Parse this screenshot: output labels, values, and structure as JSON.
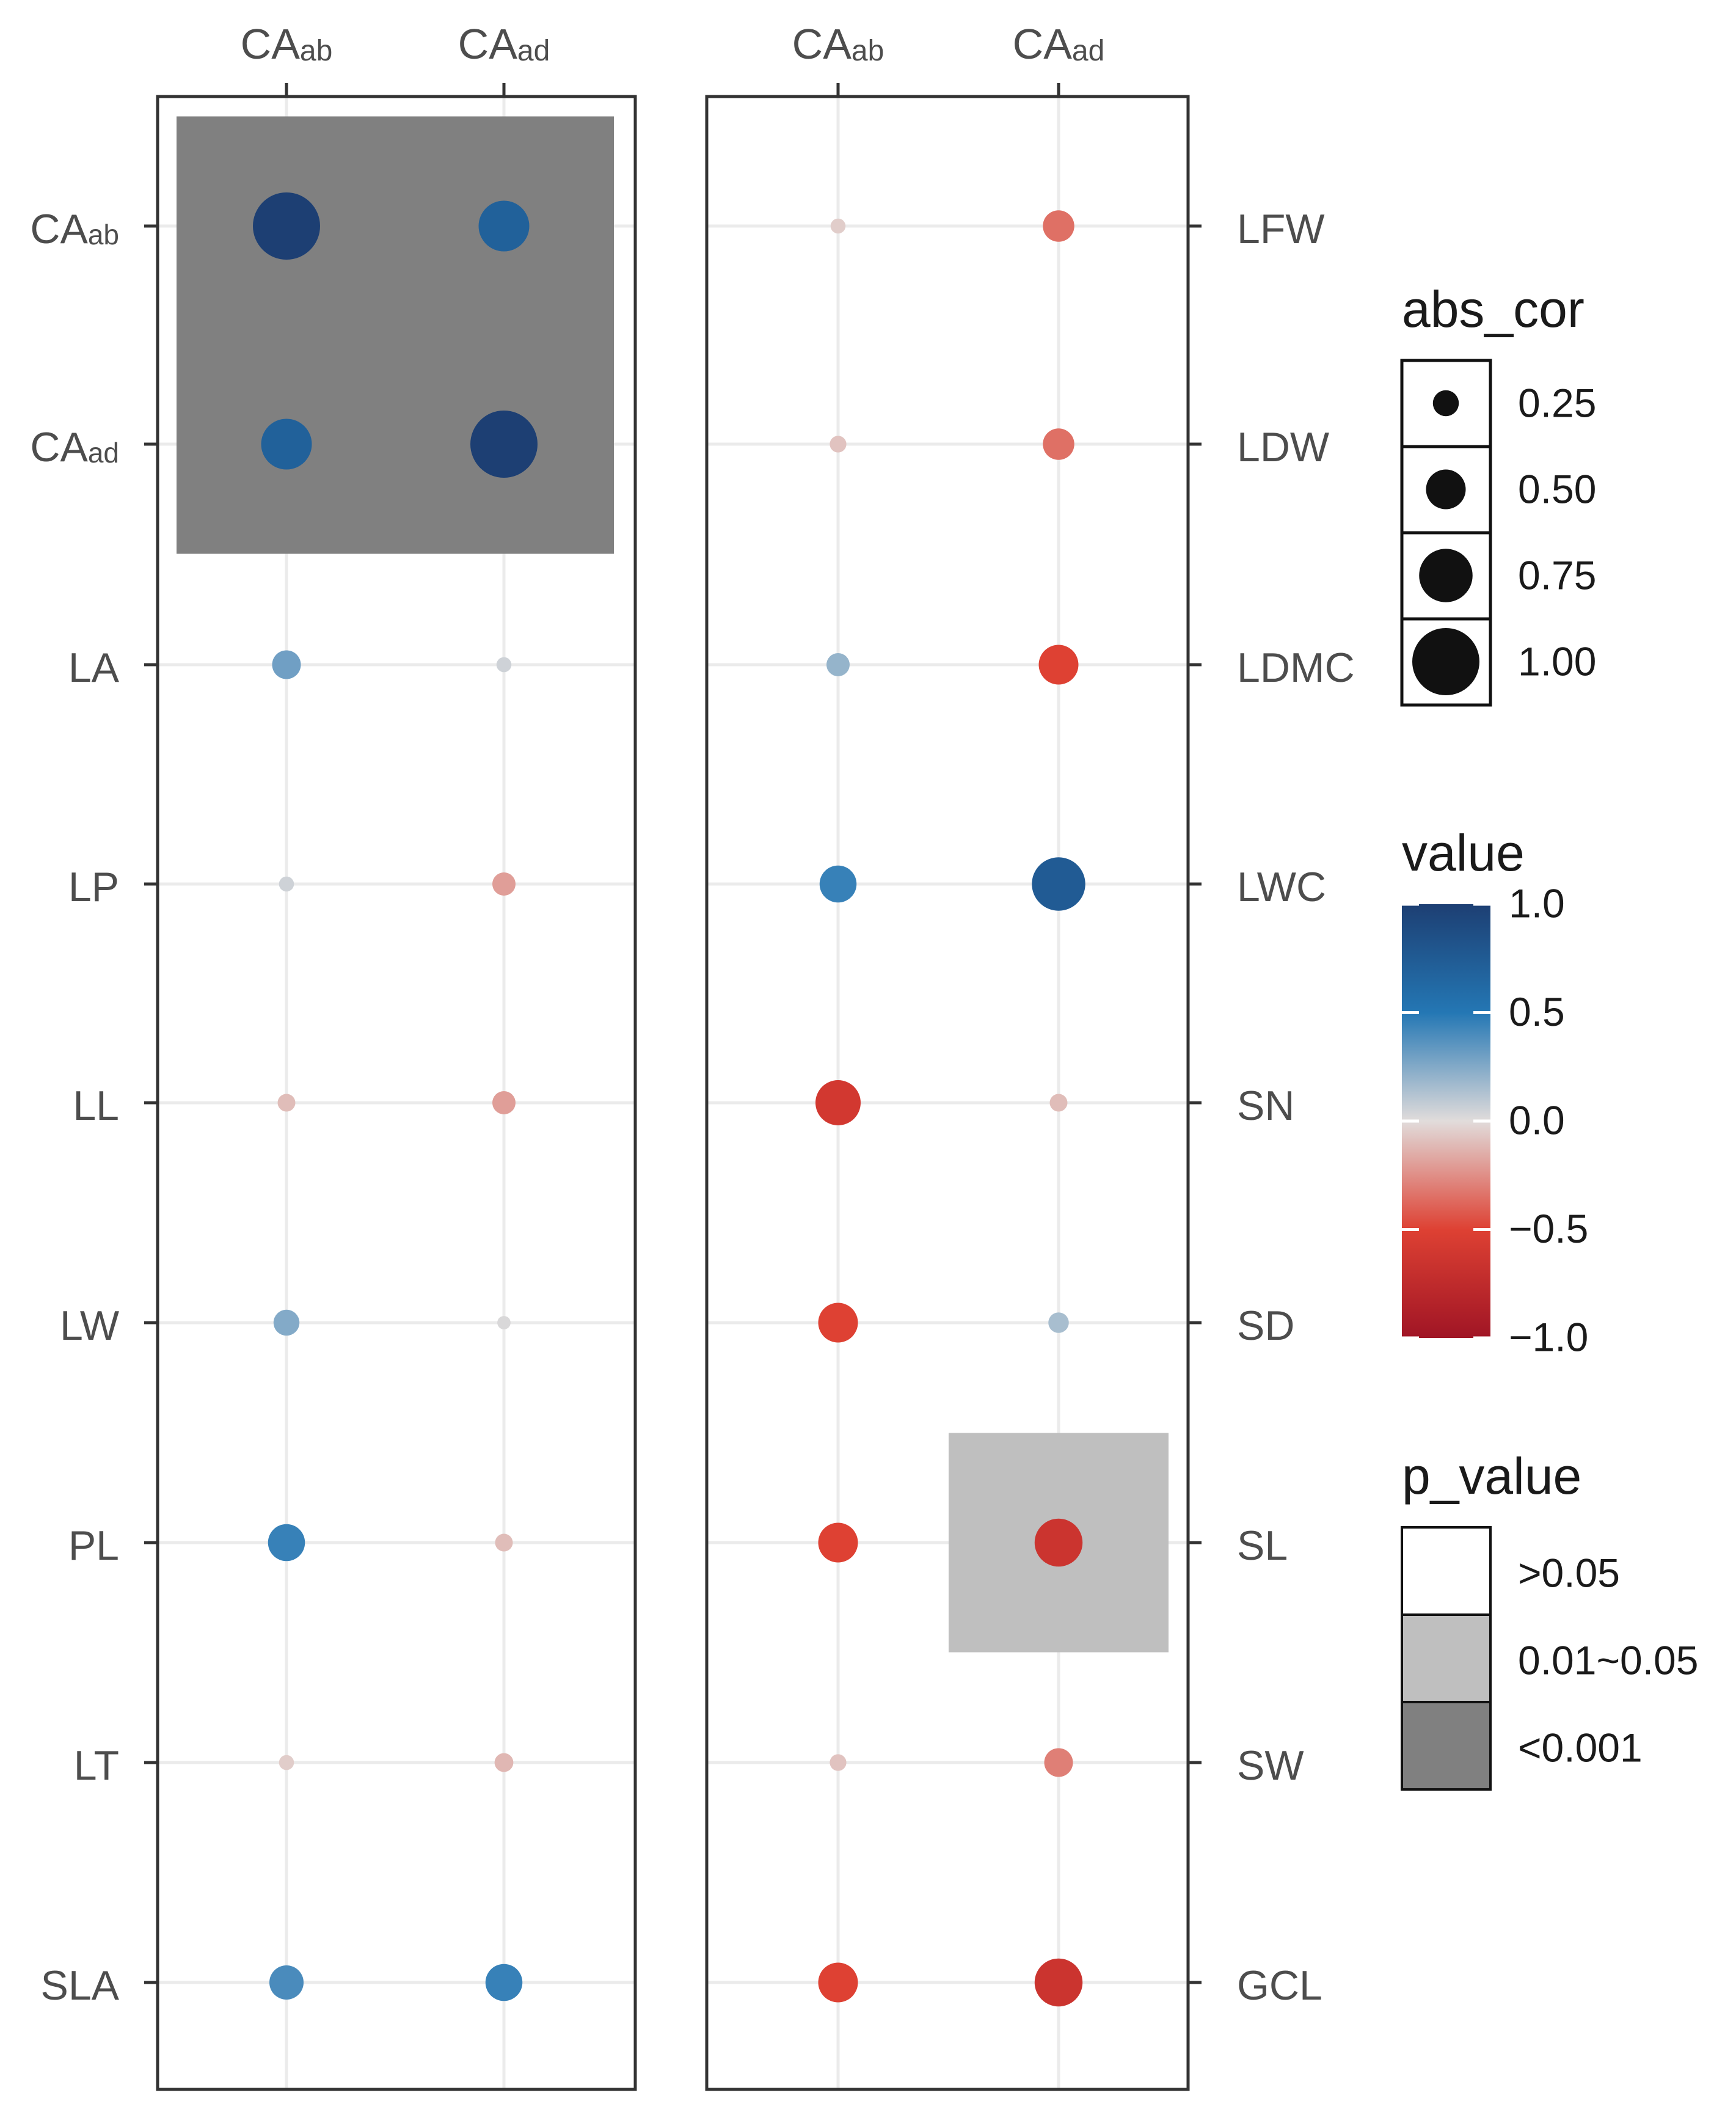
{
  "chart_data": {
    "type": "scatter",
    "description_kind": "correlation bubble matrix",
    "panels": [
      {
        "columns": [
          {
            "main": "CA",
            "sub": "ab"
          },
          {
            "main": "CA",
            "sub": "ad"
          }
        ],
        "rows": [
          {
            "main": "CA",
            "sub": "ab"
          },
          {
            "main": "CA",
            "sub": "ad"
          },
          {
            "main": "LA",
            "sub": ""
          },
          {
            "main": "LP",
            "sub": ""
          },
          {
            "main": "LL",
            "sub": ""
          },
          {
            "main": "LW",
            "sub": ""
          },
          {
            "main": "PL",
            "sub": ""
          },
          {
            "main": "LT",
            "sub": ""
          },
          {
            "main": "SLA",
            "sub": ""
          }
        ],
        "row_labels_side": "left",
        "values": [
          [
            1.0,
            0.7
          ],
          [
            0.7,
            1.0
          ],
          [
            0.3,
            0.05
          ],
          [
            0.05,
            -0.2
          ],
          [
            -0.1,
            -0.2
          ],
          [
            0.25,
            0.02
          ],
          [
            0.45,
            -0.1
          ],
          [
            -0.05,
            -0.12
          ],
          [
            0.4,
            0.45
          ]
        ],
        "p_value": [
          [
            "<0.001",
            "<0.001"
          ],
          [
            "<0.001",
            "<0.001"
          ],
          [
            ">0.05",
            ">0.05"
          ],
          [
            ">0.05",
            ">0.05"
          ],
          [
            ">0.05",
            ">0.05"
          ],
          [
            ">0.05",
            ">0.05"
          ],
          [
            ">0.05",
            ">0.05"
          ],
          [
            ">0.05",
            ">0.05"
          ],
          [
            ">0.05",
            ">0.05"
          ]
        ]
      },
      {
        "columns": [
          {
            "main": "CA",
            "sub": "ab"
          },
          {
            "main": "CA",
            "sub": "ad"
          }
        ],
        "rows": [
          {
            "main": "LFW",
            "sub": ""
          },
          {
            "main": "LDW",
            "sub": ""
          },
          {
            "main": "LDMC",
            "sub": ""
          },
          {
            "main": "LWC",
            "sub": ""
          },
          {
            "main": "SN",
            "sub": ""
          },
          {
            "main": "SD",
            "sub": ""
          },
          {
            "main": "SL",
            "sub": ""
          },
          {
            "main": "SW",
            "sub": ""
          },
          {
            "main": "GCL",
            "sub": ""
          }
        ],
        "row_labels_side": "right",
        "values": [
          [
            -0.05,
            -0.35
          ],
          [
            -0.08,
            -0.35
          ],
          [
            0.2,
            -0.5
          ],
          [
            0.45,
            0.75
          ],
          [
            -0.6,
            -0.1
          ],
          [
            -0.5,
            0.15
          ],
          [
            -0.5,
            -0.65
          ],
          [
            -0.08,
            -0.3
          ],
          [
            -0.5,
            -0.65
          ]
        ],
        "p_value": [
          [
            ">0.05",
            ">0.05"
          ],
          [
            ">0.05",
            ">0.05"
          ],
          [
            ">0.05",
            ">0.05"
          ],
          [
            ">0.05",
            ">0.05"
          ],
          [
            ">0.05",
            ">0.05"
          ],
          [
            ">0.05",
            ">0.05"
          ],
          [
            ">0.05",
            "0.01~0.05"
          ],
          [
            ">0.05",
            ">0.05"
          ],
          [
            ">0.05",
            ">0.05"
          ]
        ]
      }
    ],
    "legends": {
      "size": {
        "title": "abs_cor",
        "entries": [
          {
            "label": "0.25",
            "value": 0.25
          },
          {
            "label": "0.50",
            "value": 0.5
          },
          {
            "label": "0.75",
            "value": 0.75
          },
          {
            "label": "1.00",
            "value": 1.0
          }
        ]
      },
      "color": {
        "title": "value",
        "ticks": [
          {
            "label": "1.0",
            "value": 1.0
          },
          {
            "label": "0.5",
            "value": 0.5
          },
          {
            "label": "0.0",
            "value": 0.0
          },
          {
            "label": "−0.5",
            "value": -0.5
          },
          {
            "label": "−1.0",
            "value": -1.0
          }
        ],
        "colors": {
          "pos_1": "#1d3f73",
          "pos_0_5": "#2477b4",
          "zero": "#e1dcdb",
          "neg_0_5": "#de4133",
          "neg_1": "#a01525"
        }
      },
      "fill": {
        "title": "p_value",
        "entries": [
          {
            "label": ">0.05",
            "color": "#ffffff"
          },
          {
            "label": "0.01~0.05",
            "color": "#bfbfbf"
          },
          {
            "label": "<0.001",
            "color": "#808080"
          }
        ]
      }
    },
    "grid": true,
    "legend_position": "right"
  }
}
